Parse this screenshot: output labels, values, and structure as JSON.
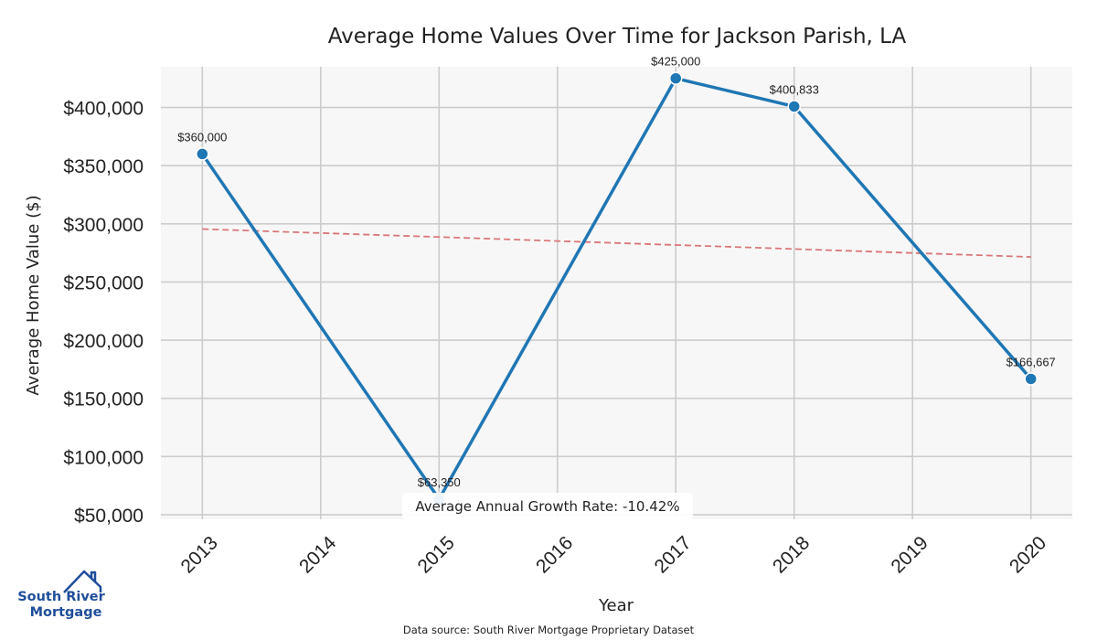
{
  "chart_data": {
    "type": "line",
    "title": "Average Home Values Over Time for Jackson Parish, LA",
    "xlabel": "Year",
    "ylabel": "Average Home Value ($)",
    "categories": [
      "2013",
      "2014",
      "2015",
      "2016",
      "2017",
      "2018",
      "2019",
      "2020"
    ],
    "series": [
      {
        "name": "Average Home Value",
        "x": [
          2013,
          2015,
          2017,
          2018,
          2020
        ],
        "values": [
          360000,
          63350,
          425000,
          400833,
          166667
        ],
        "labels": [
          "$360,000",
          "$63,350",
          "$425,000",
          "$400,833",
          "$166,667"
        ],
        "color": "#1f77b4"
      }
    ],
    "trend": {
      "x": [
        2013,
        2020
      ],
      "values": [
        295500,
        271500
      ],
      "color": "#d9777b",
      "style": "dashed"
    },
    "yticks": [
      50000,
      100000,
      150000,
      200000,
      250000,
      300000,
      350000,
      400000
    ],
    "ytick_labels": [
      "$50,000",
      "$100,000",
      "$150,000",
      "$200,000",
      "$250,000",
      "$300,000",
      "$350,000",
      "$400,000"
    ],
    "xlim": [
      2012.65,
      2020.35
    ],
    "ylim": [
      46000,
      435000
    ],
    "grid": true,
    "annotation": "Average Annual Growth Rate: -10.42%",
    "source": "Data source: South River Mortgage Proprietary Dataset",
    "background_color": "#f7f7f7",
    "grid_color": "#cccccc"
  },
  "logo": {
    "line1": "South River",
    "line2": "Mortgage",
    "color": "#1f4e9a"
  }
}
